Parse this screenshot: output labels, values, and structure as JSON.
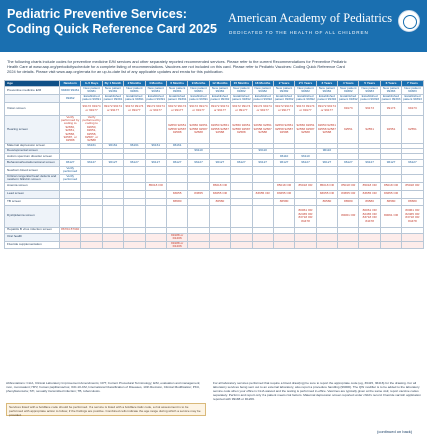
{
  "header": {
    "title": "Pediatric Preventive Services: Coding Quick Reference Card 2025",
    "org": "American Academy of Pediatrics",
    "tagline": "DEDICATED TO THE HEALTH OF ALL CHILDREN",
    "brand_color": "#1a6fb0"
  },
  "intro": {
    "line1": "The following charts include codes for preventive medicine E/M services and other separately reported recommended services. Please refer to the current Recommendations for Preventive Pediatric",
    "line2": "Health Care at www.aap.org/periodicityschedule for a complete listing of recommendations. Vaccines are not included on this card. Please refer to Pediatric Vaccines: Coding Quick Reference Card",
    "line3": "2024 for details. Please visit www.aap.org/errata for an up-to-date list of any applicable updates and errata for this publication."
  },
  "table": {
    "columns": [
      "Age",
      "Newborn",
      "3–5 Days",
      "By 1 Month",
      "2 Months",
      "4 Months",
      "6 Months",
      "9 Months",
      "12 Months",
      "15 Months",
      "18 Months",
      "2 Years",
      "2½ Years",
      "3 Years",
      "4 Years",
      "5 Years",
      "6 Years",
      "7 Years"
    ],
    "rows": [
      {
        "label": "Preventive medicine E/M",
        "cells": [
          "99460 99461",
          "New patient 99381",
          "New patient 99381",
          "New patient 99381",
          "New patient 99381",
          "New patient 99381",
          "New patient 99381",
          "New patient 99382",
          "New patient 99382",
          "New patient 99382",
          "New patient 99382",
          "New patient 99382",
          "New patient 99382",
          "New patient 99382",
          "New patient 99383",
          "New patient 99383",
          "New patient 99383"
        ],
        "style": "blu"
      },
      {
        "label": "",
        "cells": [
          "99462",
          "Established patient 99391",
          "Established patient 99391",
          "Established patient 99391",
          "Established patient 99391",
          "Established patient 99391",
          "Established patient 99391",
          "Established patient 99392",
          "Established patient 99392",
          "Established patient 99392",
          "Established patient 99392",
          "Established patient 99392",
          "Established patient 99392",
          "Established patient 99392",
          "Established patient 99393",
          "Established patient 99393",
          "Established patient 99393"
        ],
        "style": "blu"
      },
      {
        "label": "Vision screen",
        "cells": [
          "",
          "99172 99174 or 99177",
          "99172 99174 or 99177",
          "99172 99174 or 99177",
          "99172 99174 or 99177",
          "99172 99174 or 99177",
          "99172 99174 or 99177",
          "99172 99174 or 99177",
          "99172 99174 or 99177",
          "99172 99174 or 99177",
          "99172 99174 or 99177",
          "99172 99174 or 99177",
          "99172 99174 or 99177",
          "99173",
          "99173",
          "99173",
          "99173"
        ],
        "style": "red"
      },
      {
        "label": "Hearing screen",
        "cells": [
          "Verify performed by coding to 92650, 92651, 92558, 92587, or 92588",
          "Verify performed by coding to 92650, 92651, 92558, 92587, or 92588",
          "",
          "",
          "",
          "92650 92651 92558 92587 92588",
          "92650 92651 92558 92587 92588",
          "92650 92651 92558 92587 92588",
          "92650 92651 92558 92587 92588",
          "92650 92651 92558 92587 92588",
          "92650 92651 92558 92587 92588",
          "92650 92651 92558 92587 92588",
          "92650 92651 92558 92587 92588",
          "92551",
          "92551",
          "92551",
          "92551"
        ],
        "style": "red"
      },
      {
        "label": "Maternal depression screen",
        "cells": [
          "",
          "96161",
          "96161",
          "96161",
          "96161",
          "96161",
          "",
          "",
          "",
          "",
          "",
          "",
          "",
          "",
          "",
          "",
          ""
        ],
        "style": "blu"
      },
      {
        "label": "Developmental screen",
        "cells": [
          "",
          "",
          "",
          "",
          "",
          "",
          "96110",
          "",
          "",
          "96110",
          "",
          "",
          "96110",
          "",
          "",
          "",
          ""
        ],
        "style": "blu"
      },
      {
        "label": "Autism spectrum disorder screen",
        "cells": [
          "",
          "",
          "",
          "",
          "",
          "",
          "",
          "",
          "",
          "",
          "96110",
          "96110",
          "",
          "",
          "",
          "",
          ""
        ],
        "style": "blu"
      },
      {
        "label": "Behavioral/social/emotional screen",
        "cells": [
          "96127",
          "96127",
          "96127",
          "96127",
          "96127",
          "96127",
          "96127",
          "96127",
          "96127",
          "96127",
          "96127",
          "96127",
          "96127",
          "96127",
          "96127",
          "96127",
          "96127"
        ],
        "style": "blu"
      },
      {
        "label": "Newborn blood screen",
        "cells": [
          "Verify performed",
          "",
          "",
          "",
          "",
          "",
          "",
          "",
          "",
          "",
          "",
          "",
          "",
          "",
          "",
          "",
          ""
        ],
        "style": "blu"
      },
      {
        "label": "Critical congenital heart defects and newborn bilirubin screen",
        "cells": [
          "Verify performed",
          "",
          "",
          "",
          "",
          "",
          "",
          "",
          "",
          "",
          "",
          "",
          "",
          "",
          "",
          "",
          ""
        ],
        "style": "blu"
      },
      {
        "label": "Anemia screen",
        "cells": [
          "",
          "",
          "",
          "",
          "85018 OR",
          "",
          "",
          "85018 OR",
          "",
          "",
          "85018 OR",
          "85018 OR",
          "85018 OR",
          "85018 OR",
          "85018 OR",
          "85018 OR",
          "85018 OR"
        ],
        "style": "red"
      },
      {
        "label": "Lead screen",
        "cells": [
          "",
          "",
          "",
          "",
          "",
          "83655",
          "83655",
          "83655 OR",
          "",
          "83655 OR",
          "83655 OR",
          "",
          "83655 OR",
          "83655 OR",
          "83655 OR",
          "83655 OR",
          ""
        ],
        "style": "red"
      },
      {
        "label": "TB screen",
        "cells": [
          "",
          "",
          "",
          "",
          "",
          "86580",
          "",
          "86580",
          "",
          "",
          "86580",
          "",
          "86580",
          "86580",
          "86580",
          "86580",
          "86580"
        ],
        "style": "red"
      },
      {
        "label": "Dyslipidemia screen",
        "cells": [
          "",
          "",
          "",
          "",
          "",
          "",
          "",
          "",
          "",
          "",
          "",
          "80061 OR 82465 OR 83718 OR 84478",
          "",
          "80061 OR",
          "80061 OR 82465 OR 83718 OR 84478",
          "80061 OR",
          "80061 OR 82465 OR 83718 OR 84478"
        ],
        "style": "red"
      },
      {
        "label": "Hepatitis B virus infection screen",
        "cells": [
          "86704 87340",
          "",
          "",
          "",
          "",
          "",
          "",
          "",
          "",
          "",
          "",
          "",
          "",
          "",
          "",
          "",
          ""
        ],
        "style": "red"
      },
      {
        "label": "Oral health",
        "cells": [
          "",
          "",
          "",
          "",
          "",
          "99188 or D1206",
          "",
          "",
          "",
          "",
          "",
          "",
          "",
          "",
          "",
          "",
          ""
        ],
        "style": "band"
      },
      {
        "label": "Fluoride supplementation",
        "cells": [
          "",
          "",
          "",
          "",
          "",
          "99188 or D1206",
          "",
          "",
          "",
          "",
          "",
          "",
          "",
          "",
          "",
          "",
          ""
        ],
        "style": "band"
      }
    ]
  },
  "abbreviations": "Abbreviations: CLIA, Clinical Laboratory Improvement Amendments; CPT, Current Procedural Terminology; E/M, evaluation and management; mon, monovalent; HPV, human papillomavirus; ICD-10-CM, International Classification of Diseases, 10th Revision, Clinical Modification; PKU, phenylketonuria; STI, sexually transmitted infection; TB, tuberculosis.",
  "note": "Services listed with a boldface code should be performed. If a service is listed with a boldface italic code, a risk assessment is to be performed with appropriate action to follow, if the findings are positive. Combined cells indicate the age range during which a service may be provided.",
  "footnotes": "For all laboratory services performed that require a blood draw(ing) be sure to report the appropriate code (eg, 36415, 36416) for the drawing. For all laboratory services being sent out to an external laboratory, also report a procedure handling (99000). The QW modifier is to be added to the laboratory service code when your office is CLIA waived and the testing is performed in-office. Vaccines are typically given at the same visit; report vaccine codes separately. Perform and report only if a patient meets risk factors. Maternal depression screen reported under child's record. Fluoride varnish application reported with 99188 or D1206.",
  "continued": "(continued on back)"
}
